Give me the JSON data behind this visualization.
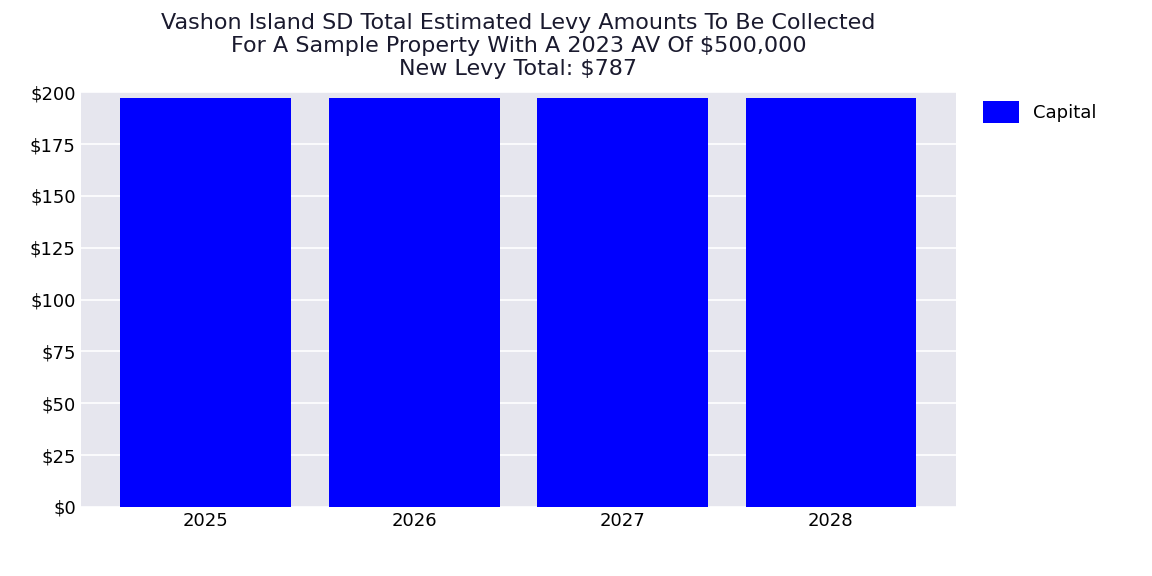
{
  "title": "Vashon Island SD Total Estimated Levy Amounts To Be Collected\nFor A Sample Property With A 2023 AV Of $500,000\nNew Levy Total: $787",
  "categories": [
    2025,
    2026,
    2027,
    2028
  ],
  "values": [
    197,
    197,
    197,
    197
  ],
  "bar_color": "#0000FF",
  "legend_label": "Capital",
  "ylim": [
    0,
    200
  ],
  "yticks": [
    0,
    25,
    50,
    75,
    100,
    125,
    150,
    175,
    200
  ],
  "ytick_labels": [
    "$0",
    "$25",
    "$50",
    "$75",
    "$100",
    "$125",
    "$150",
    "$175",
    "$200"
  ],
  "plot_bg_color": "#E6E6EE",
  "fig_bg_color": "#FFFFFF",
  "grid_color": "#FFFFFF",
  "title_fontsize": 16,
  "tick_fontsize": 13,
  "legend_fontsize": 13,
  "bar_width": 0.82
}
